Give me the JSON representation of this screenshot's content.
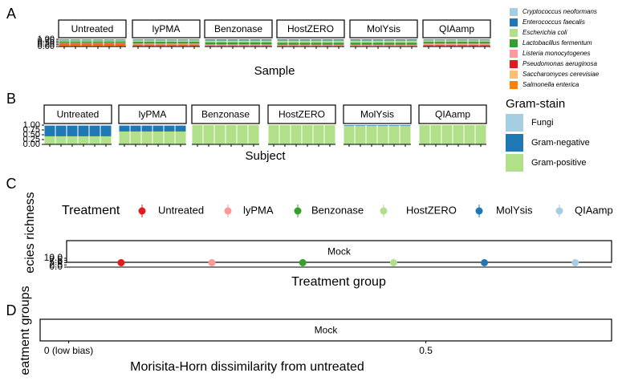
{
  "chart_data": [
    {
      "type": "bar",
      "panel_label": "A",
      "facets": [
        "Untreated",
        "lyPMA",
        "Benzonase",
        "HostZERO",
        "MolYsis",
        "QIAamp"
      ],
      "xlabel": "Sample",
      "ylim": [
        0,
        1
      ],
      "yticks": [
        {
          "value": 0,
          "label": "0.00"
        },
        {
          "value": 0.25,
          "label": "0.25"
        },
        {
          "value": 0.5,
          "label": "0.50"
        },
        {
          "value": 0.75,
          "label": "0.75"
        },
        {
          "value": 1,
          "label": "1.00"
        }
      ],
      "legend": "right",
      "series": [
        {
          "name": "Cryptococcus neoformans",
          "color": "#a6cee3",
          "values": [
            0.02,
            0.02,
            0.01,
            0.01,
            0.01,
            0.02
          ]
        },
        {
          "name": "Enterococcus faecalis",
          "color": "#1f78b4",
          "values": [
            0.12,
            0.12,
            0.15,
            0.15,
            0.15,
            0.12
          ]
        },
        {
          "name": "Escherichia coli",
          "color": "#b2df8a",
          "values": [
            0.15,
            0.2,
            0.25,
            0.3,
            0.3,
            0.2
          ]
        },
        {
          "name": "Lactobacillus fermentum",
          "color": "#33a02c",
          "values": [
            0.2,
            0.25,
            0.3,
            0.3,
            0.3,
            0.25
          ]
        },
        {
          "name": "Listeria monocytogenes",
          "color": "#fb9a99",
          "values": [
            0.12,
            0.15,
            0.15,
            0.14,
            0.15,
            0.2
          ]
        },
        {
          "name": "Pseudomonas aeruginosa",
          "color": "#e31a1c",
          "values": [
            0.12,
            0.08,
            0.04,
            0.02,
            0.01,
            0.08
          ]
        },
        {
          "name": "Saccharomyces cerevisiae",
          "color": "#fdbf6f",
          "values": [
            0.02,
            0.02,
            0.01,
            0.01,
            0.01,
            0.02
          ]
        },
        {
          "name": "Salmonella enterica",
          "color": "#ff7f00",
          "values": [
            0.25,
            0.16,
            0.09,
            0.07,
            0.07,
            0.11
          ]
        }
      ]
    },
    {
      "type": "bar",
      "panel_label": "B",
      "facets": [
        "Untreated",
        "lyPMA",
        "Benzonase",
        "HostZERO",
        "MolYsis",
        "QIAamp"
      ],
      "xlabel": "Subject",
      "ylim": [
        0,
        1
      ],
      "yticks": [
        {
          "value": 0,
          "label": "0.00"
        },
        {
          "value": 0.25,
          "label": "0.25"
        },
        {
          "value": 0.5,
          "label": "0.50"
        },
        {
          "value": 0.75,
          "label": "0.75"
        },
        {
          "value": 1,
          "label": "1.00"
        }
      ],
      "legend": "right",
      "legend_title": "Gram-stain",
      "series": [
        {
          "name": "Fungi",
          "color": "#a6cee3",
          "values": [
            0.03,
            0.03,
            0,
            0,
            0,
            0
          ]
        },
        {
          "name": "Gram-negative",
          "color": "#1f78b4",
          "values": [
            0.55,
            0.3,
            0,
            0,
            0.03,
            0
          ]
        },
        {
          "name": "Gram-positive",
          "color": "#b2df8a",
          "values": [
            0.42,
            0.67,
            1,
            1,
            0.97,
            1
          ]
        }
      ]
    },
    {
      "type": "point",
      "panel_label": "C",
      "facets": [
        "Mock"
      ],
      "legend_title": "Treatment",
      "legend": "top",
      "categories": [
        "Untreated",
        "lyPMA",
        "Benzonase",
        "HostZERO",
        "MolYsis",
        "QIAamp"
      ],
      "colors": [
        "#e31a1c",
        "#fb9a99",
        "#33a02c",
        "#b2df8a",
        "#1f78b4",
        "#a6cee3"
      ],
      "values": [
        5,
        5,
        5,
        5,
        5,
        5
      ],
      "xlabel": "Treatment group",
      "ylabel": "ecies richness",
      "ylim": [
        0,
        10
      ],
      "yticks": [
        {
          "value": 0,
          "label": "0.0"
        },
        {
          "value": 2.5,
          "label": "2.5"
        },
        {
          "value": 5,
          "label": "5.0"
        },
        {
          "value": 7.5,
          "label": "7.5"
        },
        {
          "value": 10,
          "label": "10.0"
        }
      ]
    },
    {
      "type": "scatter",
      "panel_label": "D",
      "facets": [
        "Mock"
      ],
      "xlim": [
        -0.04,
        0.76
      ],
      "xticks": [
        {
          "value": 0,
          "label": "0 (low bias)"
        },
        0.5
      ],
      "xlabel": "Morisita-Horn dissimilarity from untreated",
      "ylabel": "eatment groups"
    }
  ]
}
